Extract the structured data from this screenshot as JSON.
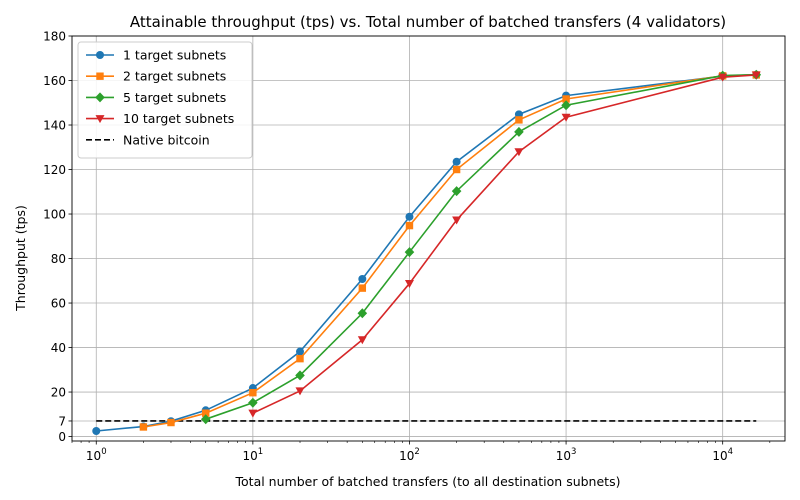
{
  "chart_data": {
    "type": "line",
    "title": "Attainable throughput (tps) vs. Total number of batched transfers (4 validators)",
    "xlabel": "Total number of batched transfers (to all destination subnets)",
    "ylabel": "Throughput (tps)",
    "xscale": "log",
    "xlim": [
      0.7,
      25000
    ],
    "ylim": [
      -2,
      180
    ],
    "xticks": [
      {
        "value": 1,
        "base": "10",
        "exp": "0"
      },
      {
        "value": 10,
        "base": "10",
        "exp": "1"
      },
      {
        "value": 100,
        "base": "10",
        "exp": "2"
      },
      {
        "value": 1000,
        "base": "10",
        "exp": "3"
      },
      {
        "value": 10000,
        "base": "10",
        "exp": "4"
      }
    ],
    "yticks": [
      0,
      7,
      20,
      40,
      60,
      80,
      100,
      120,
      140,
      160,
      180
    ],
    "grid": true,
    "legend_position": "top-left",
    "series": [
      {
        "name": "1 target subnets",
        "color": "#1f77b4",
        "marker": "circle",
        "x": [
          1,
          2,
          3,
          5,
          10,
          20,
          50,
          100,
          200,
          500,
          1000,
          10000,
          16384
        ],
        "y": [
          2.5,
          4.5,
          6.9,
          11.8,
          21.8,
          38.2,
          70.8,
          98.8,
          123.5,
          144.8,
          153.2,
          162.0,
          162.6
        ]
      },
      {
        "name": "2 target subnets",
        "color": "#ff7f0e",
        "marker": "square",
        "x": [
          2,
          3,
          5,
          10,
          20,
          50,
          100,
          200,
          500,
          1000,
          10000,
          16384
        ],
        "y": [
          4.3,
          6.3,
          10.5,
          19.7,
          35.0,
          66.7,
          94.8,
          120.0,
          142.3,
          151.7,
          162.1,
          162.5
        ]
      },
      {
        "name": "5 target subnets",
        "color": "#2ca02c",
        "marker": "diamond",
        "x": [
          5,
          10,
          20,
          50,
          100,
          200,
          500,
          1000,
          10000,
          16384
        ],
        "y": [
          7.8,
          15.2,
          27.5,
          55.4,
          82.9,
          110.3,
          136.9,
          148.9,
          162.2,
          162.6
        ]
      },
      {
        "name": "10 target subnets",
        "color": "#d62728",
        "marker": "triangle-down",
        "x": [
          10,
          20,
          50,
          100,
          200,
          500,
          1000,
          10000,
          16384
        ],
        "y": [
          10.5,
          20.5,
          43.5,
          68.8,
          97.3,
          128.0,
          143.5,
          161.5,
          162.5
        ]
      }
    ],
    "reference_lines": [
      {
        "name": "Native bitcoin",
        "color": "#000000",
        "style": "dashed",
        "y": 7,
        "x_range": [
          1,
          16384
        ]
      }
    ]
  }
}
